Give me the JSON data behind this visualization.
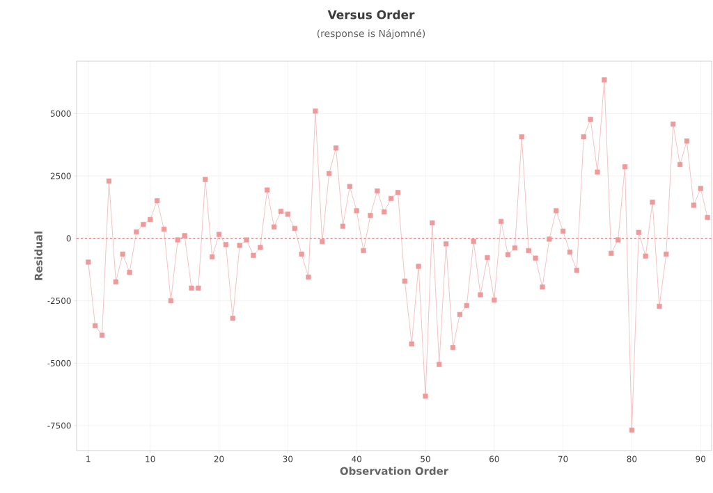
{
  "chart_data": {
    "type": "line",
    "title": "Versus Order",
    "subtitle": "(response is Nájomné)",
    "xlabel": "Observation Order",
    "ylabel": "Residual",
    "x": [
      1,
      2,
      3,
      4,
      5,
      6,
      7,
      8,
      9,
      10,
      11,
      12,
      13,
      14,
      15,
      16,
      17,
      18,
      19,
      20,
      21,
      22,
      23,
      24,
      25,
      26,
      27,
      28,
      29,
      30,
      31,
      32,
      33,
      34,
      35,
      36,
      37,
      38,
      39,
      40,
      41,
      42,
      43,
      44,
      45,
      46,
      47,
      48,
      49,
      50,
      51,
      52,
      53,
      54,
      55,
      56,
      57,
      58,
      59,
      60,
      61,
      62,
      63,
      64,
      65,
      66,
      67,
      68,
      69,
      70,
      71,
      72,
      73,
      74,
      75,
      76,
      77,
      78,
      79,
      80,
      81,
      82,
      83,
      84,
      85,
      86,
      87,
      88,
      89,
      90,
      91
    ],
    "series": [
      {
        "color": "#ef9a9a",
        "values": [
          -950,
          -3500,
          -3880,
          2300,
          -1740,
          -630,
          -1360,
          260,
          560,
          760,
          1510,
          370,
          -2500,
          -60,
          110,
          -1990,
          -1990,
          2360,
          -740,
          160,
          -250,
          -3200,
          -280,
          -60,
          -680,
          -360,
          1940,
          460,
          1080,
          970,
          400,
          -630,
          -1550,
          5100,
          -130,
          2600,
          3620,
          490,
          2080,
          1110,
          -490,
          920,
          1900,
          1060,
          1600,
          1840,
          -1710,
          -4230,
          -1120,
          -6320,
          620,
          -5050,
          -220,
          -4370,
          -3050,
          -2690,
          -120,
          -2260,
          -770,
          -2470,
          680,
          -650,
          -380,
          4070,
          -490,
          -790,
          -1950,
          -30,
          1110,
          290,
          -550,
          -1280,
          4070,
          4770,
          2660,
          6350,
          -600,
          -60,
          2870,
          -7680,
          240,
          -710,
          1450,
          -2720,
          -630,
          4580,
          2960,
          3900,
          1330,
          2000,
          840
        ]
      }
    ],
    "xlim": [
      -0.7,
      91.6
    ],
    "ylim": [
      -8500,
      7100
    ],
    "xticks": [
      1,
      10,
      20,
      30,
      40,
      50,
      60,
      70,
      80,
      90
    ],
    "yticks": [
      -7500,
      -5000,
      -2500,
      0,
      2500,
      5000
    ],
    "ref_lines": [
      {
        "axis": "y",
        "value": 0,
        "color": "#e0474c",
        "line_style": "dashed"
      }
    ],
    "grid": true,
    "marker": "square",
    "line_style": "solid"
  }
}
